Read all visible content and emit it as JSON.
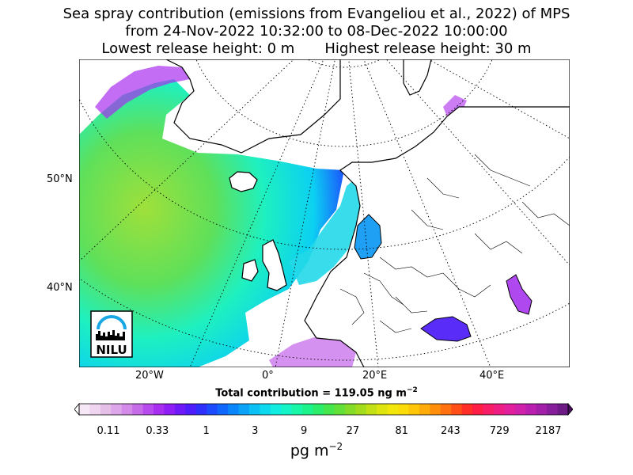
{
  "title": {
    "line1": "Sea spray contribution (emissions from Evangeliou et al., 2022) of MPS",
    "line2": "from 24-Nov-2022 10:32:00 to 08-Dec-2022 10:00:00",
    "lowest_release": "Lowest release height: 0 m",
    "highest_release": "Highest release height: 30 m"
  },
  "map": {
    "lat_labels": [
      "50°N",
      "40°N"
    ],
    "lon_labels": [
      "20°W",
      "0°",
      "20°E",
      "40°E"
    ],
    "logo_text": "NILU",
    "land_color": "#ffffff",
    "coast_color": "#000000",
    "grid_style": "dotted"
  },
  "total_contribution": {
    "label": "Total contribution = 119.05 ng m",
    "exponent": "−2"
  },
  "colorbar": {
    "tick_labels": [
      "0.11",
      "0.33",
      "1",
      "3",
      "9",
      "27",
      "81",
      "243",
      "729",
      "2187"
    ],
    "unit": "pg m",
    "unit_exponent": "−2",
    "colors": [
      "#f6e8f6",
      "#efd5ef",
      "#e6bfe9",
      "#dda6ea",
      "#d48ae8",
      "#c76ce9",
      "#b84bee",
      "#a82ff0",
      "#8f1df5",
      "#6f19f8",
      "#4f1cfb",
      "#2f2ffc",
      "#1b4bfc",
      "#1067fb",
      "#0a85fa",
      "#0aa3f8",
      "#0bc0f4",
      "#0cd9ee",
      "#10ecdf",
      "#14f4c6",
      "#18f6a8",
      "#1cf38a",
      "#2ced6a",
      "#44e64c",
      "#62e038",
      "#84db28",
      "#a3dc1c",
      "#c2e014",
      "#dee40e",
      "#f3e60a",
      "#fbdc08",
      "#fec607",
      "#ffab08",
      "#ff8f0a",
      "#ff700e",
      "#ff4f16",
      "#ff2f27",
      "#fd1d45",
      "#f71d66",
      "#ee1d83",
      "#e21f9d",
      "#d021aa",
      "#ba20b0",
      "#a11fa9",
      "#871d9b",
      "#6d1a86"
    ]
  }
}
